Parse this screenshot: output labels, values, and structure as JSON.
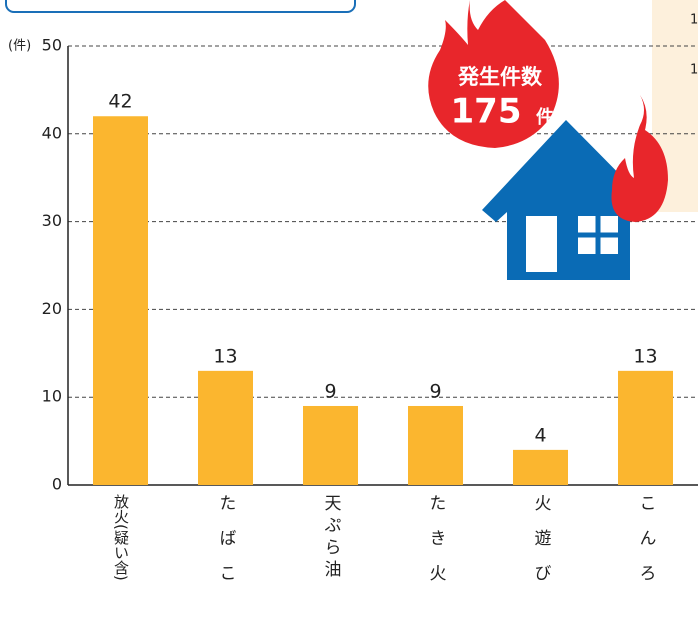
{
  "chart_data": {
    "type": "bar",
    "y_unit": "(件)",
    "categories": [
      "放火(疑い含)",
      "たばこ",
      "天ぷら油",
      "たき火",
      "火遊び",
      "こんろ"
    ],
    "values": [
      42,
      13,
      9,
      9,
      4,
      13
    ],
    "color": "#fbb62f",
    "ylim": [
      0,
      50
    ],
    "yticks": [
      0,
      10,
      20,
      30,
      40,
      50
    ],
    "grid": true,
    "annotation": {
      "label": "発生件数",
      "total": 175,
      "unit": "件"
    },
    "side_text": [
      "1",
      "1"
    ]
  }
}
